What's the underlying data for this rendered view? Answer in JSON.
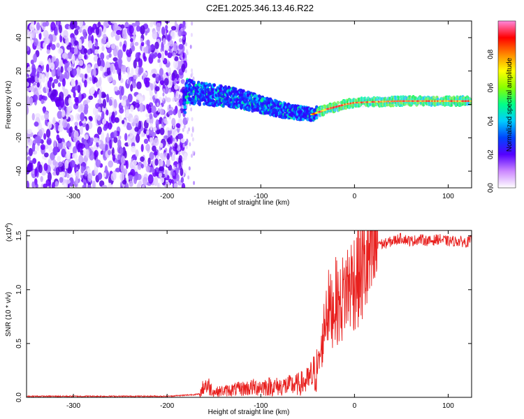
{
  "figure_title": "C2E1.2025.346.13.46.R22",
  "colors": {
    "snr_line": "#e8201e",
    "spectrogram_cmap": [
      "#ffffff",
      "#d9c7ff",
      "#6600ff",
      "#1f1fff",
      "#00c8ff",
      "#00ff66",
      "#ffff00",
      "#ff7f00",
      "#ff0000",
      "#ff44aa"
    ]
  },
  "chart_data": [
    {
      "type": "heatmap",
      "title": "",
      "xlabel": "Height of straight line (km)",
      "ylabel": "Frequency (Hz)",
      "xlim": [
        -350,
        125
      ],
      "ylim": [
        -50,
        50
      ],
      "x_ticks": [
        -300,
        -200,
        -100,
        0,
        100
      ],
      "x_tick_labels": [
        "-300",
        "-200",
        "-100",
        "0",
        "100"
      ],
      "y_ticks": [
        -40,
        -20,
        0,
        20,
        40
      ],
      "y_tick_labels": [
        "-40",
        "-20",
        "0",
        "20",
        "40"
      ],
      "colorbar": {
        "label": "Normalized spectral amplitude",
        "range": [
          0,
          1
        ],
        "ticks": [
          0.0,
          0.2,
          0.4,
          0.6,
          0.8
        ],
        "tick_labels": [
          "0.0",
          "0.2",
          "0.4",
          "0.6",
          "0.8"
        ]
      },
      "features": {
        "noise_region_x": [
          -350,
          -180
        ],
        "signal_track": {
          "x": [
            -180,
            -160,
            -140,
            -120,
            -100,
            -80,
            -60,
            -45,
            -30,
            -10,
            0,
            20,
            50,
            80,
            100,
            125
          ],
          "freq": [
            8,
            6,
            5,
            3,
            0,
            -3,
            -5,
            -6,
            -3,
            0,
            1,
            1.5,
            2,
            2,
            2,
            2
          ]
        }
      }
    },
    {
      "type": "line",
      "title": "",
      "xlabel": "Height of straight line (km)",
      "ylabel": "SNR (10 * v/v)",
      "y_multiplier": "(x10",
      "y_multiplier_exp": "4",
      "y_multiplier_close": ")",
      "xlim": [
        -350,
        125
      ],
      "ylim": [
        0,
        1.55
      ],
      "x_ticks": [
        -300,
        -200,
        -100,
        0,
        100
      ],
      "x_tick_labels": [
        "-300",
        "-200",
        "-100",
        "0",
        "100"
      ],
      "y_ticks": [
        0.0,
        0.5,
        1.0,
        1.5
      ],
      "y_tick_labels": [
        "0.0",
        "0.5",
        "1.0",
        "1.5"
      ],
      "series": [
        {
          "x": [
            -350,
            -300,
            -250,
            -200,
            -180,
            -165,
            -160,
            -155,
            -150,
            -140,
            -120,
            -100,
            -80,
            -60,
            -50,
            -40,
            -35,
            -30,
            -25,
            -20,
            -15,
            -10,
            -5,
            0,
            10,
            20,
            25,
            30,
            40,
            50,
            60,
            70,
            80,
            90,
            100,
            110,
            120,
            125
          ],
          "y": [
            0.01,
            0.01,
            0.01,
            0.01,
            0.02,
            0.03,
            0.12,
            0.1,
            0.05,
            0.06,
            0.08,
            0.1,
            0.1,
            0.12,
            0.15,
            0.25,
            0.45,
            0.85,
            0.8,
            0.9,
            0.85,
            1.0,
            1.05,
            1.1,
            1.2,
            1.32,
            1.45,
            1.42,
            1.45,
            1.48,
            1.45,
            1.47,
            1.45,
            1.47,
            1.45,
            1.45,
            1.44,
            1.46
          ]
        }
      ]
    }
  ]
}
